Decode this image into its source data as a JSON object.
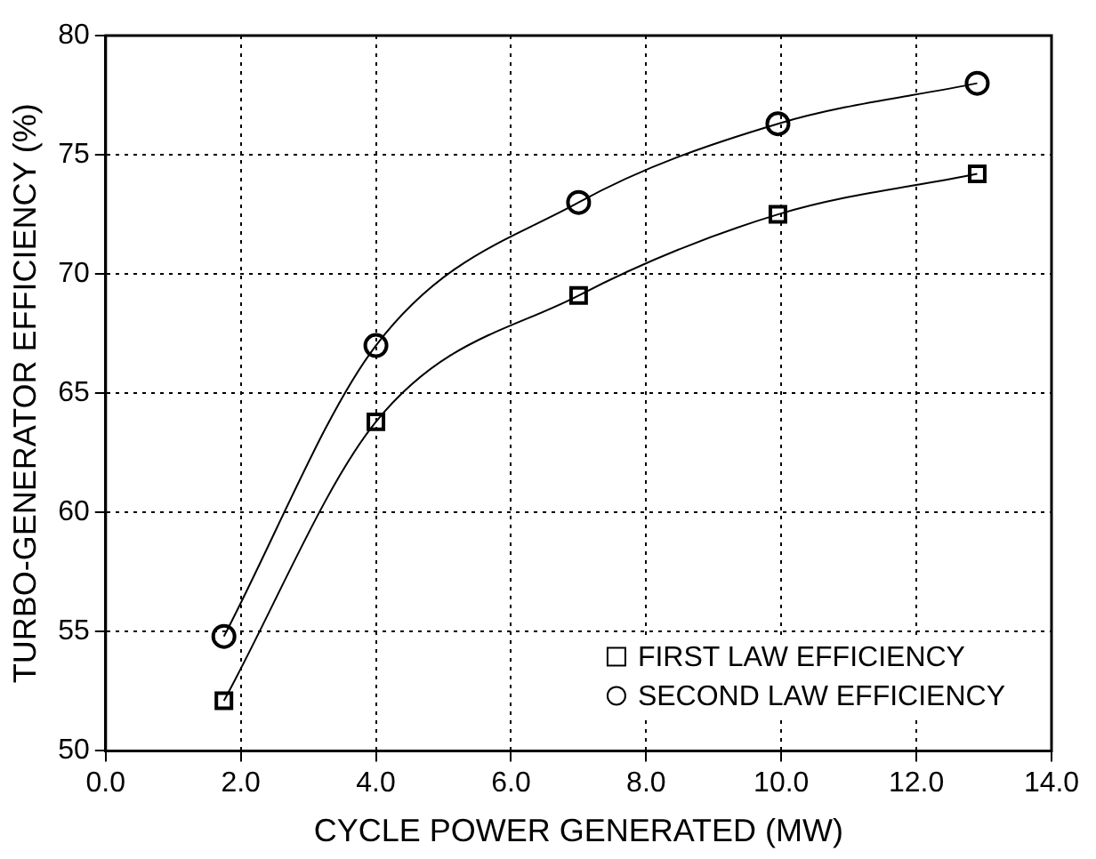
{
  "chart_data": {
    "type": "line",
    "xlabel": "CYCLE POWER GENERATED (MW)",
    "ylabel": "TURBO-GENERATOR EFFICIENCY (%)",
    "x": [
      1.75,
      4.0,
      7.0,
      9.95,
      12.9
    ],
    "series": [
      {
        "name": "FIRST LAW EFFICIENCY",
        "color": "#000000",
        "marker": "square",
        "values": [
          52.1,
          63.8,
          69.1,
          72.5,
          74.2
        ]
      },
      {
        "name": "SECOND LAW EFFICIENCY",
        "color": "#000000",
        "marker": "circle",
        "values": [
          54.8,
          67.0,
          73.0,
          76.3,
          78.0
        ]
      }
    ],
    "xlim": [
      0,
      14
    ],
    "xticks": [
      {
        "value": 0,
        "label": "0.0"
      },
      {
        "value": 2,
        "label": "2.0"
      },
      {
        "value": 4,
        "label": "4.0"
      },
      {
        "value": 6,
        "label": "6.0"
      },
      {
        "value": 8,
        "label": "8.0"
      },
      {
        "value": 10,
        "label": "10.0"
      },
      {
        "value": 12,
        "label": "12.0"
      },
      {
        "value": 14,
        "label": "14.0"
      }
    ],
    "ylim": [
      50,
      80
    ],
    "yticks": [
      50,
      55,
      60,
      65,
      70,
      75,
      80
    ],
    "grid": true,
    "legend": "bottom right",
    "line_style": "solid"
  }
}
